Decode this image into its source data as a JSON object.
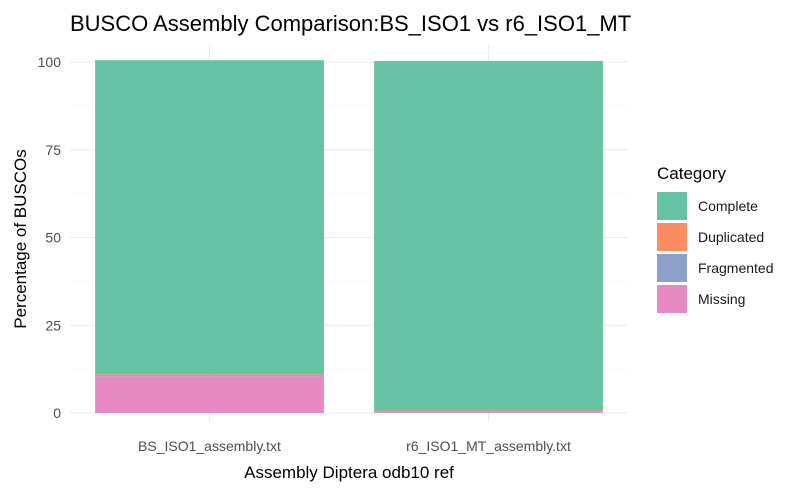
{
  "chart_data": {
    "type": "bar",
    "stacked": true,
    "title": "BUSCO Assembly Comparison:BS_ISO1 vs r6_ISO1_MT",
    "xlabel": "Assembly Diptera odb10 ref",
    "ylabel": "Percentage of BUSCOs",
    "ylim": [
      0,
      100
    ],
    "yticks": [
      "0",
      "25",
      "50",
      "75",
      "100"
    ],
    "grid": true,
    "legend_position": "right",
    "legend_title": "Category",
    "categories": [
      "BS_ISO1_assembly.txt",
      "r6_ISO1_MT_assembly.txt"
    ],
    "series": [
      {
        "name": "Complete",
        "color": "#66c2a5",
        "values": [
          89.5,
          99.6
        ]
      },
      {
        "name": "Duplicated",
        "color": "#fc8d62",
        "values": [
          0.2,
          0.4
        ]
      },
      {
        "name": "Fragmented",
        "color": "#8da0cb",
        "values": [
          0.3,
          0.1
        ]
      },
      {
        "name": "Missing",
        "color": "#e78ac3",
        "values": [
          10.5,
          0.2
        ]
      }
    ]
  }
}
